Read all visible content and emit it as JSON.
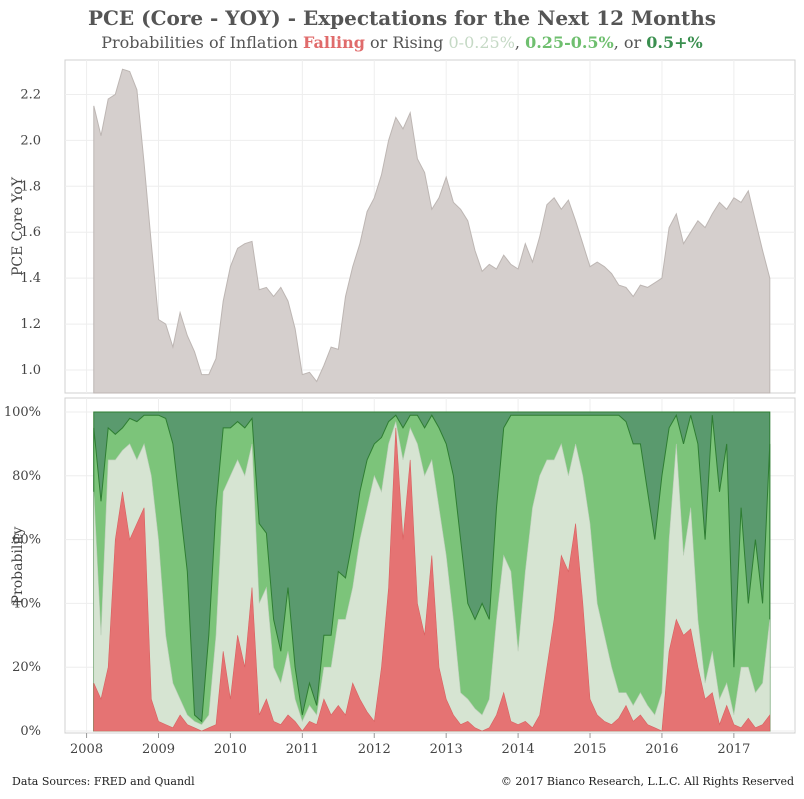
{
  "title": "PCE (Core - YOY) - Expectations for the Next 12 Months",
  "subtitle": {
    "prefix": "Probabilities of Inflation ",
    "falling": "Falling",
    "middle": " or Rising ",
    "band1": "0-0.25%",
    "sep1": ", ",
    "band2": "0.25-0.5%",
    "sep2": ", or ",
    "band3": "0.5+%"
  },
  "footer": {
    "left": "Data Sources: FRED and Quandl",
    "right": "© 2017 Bianco Research, L.L.C. All Rights Reserved"
  },
  "colors": {
    "pce_fill": "#d5cfcd",
    "pce_line": "#bdb6b3",
    "falling": "#e57373",
    "band1": "#d6e4d2",
    "band2": "#7cc47a",
    "band3": "#5a9a6e",
    "band3_line": "#2e7d32"
  },
  "chart_data": [
    {
      "type": "area",
      "ylabel": "PCE Core YoY",
      "ylim": [
        0.9,
        2.35
      ],
      "yticks": [
        "2.2",
        "2.0",
        "1.8",
        "1.6",
        "1.4",
        "1.2",
        "1.0"
      ],
      "grid": true,
      "x": [
        2008.1,
        2008.2,
        2008.3,
        2008.4,
        2008.5,
        2008.6,
        2008.7,
        2008.8,
        2008.9,
        2009.0,
        2009.1,
        2009.2,
        2009.3,
        2009.4,
        2009.5,
        2009.6,
        2009.7,
        2009.8,
        2009.9,
        2010.0,
        2010.1,
        2010.2,
        2010.3,
        2010.4,
        2010.5,
        2010.6,
        2010.7,
        2010.8,
        2010.9,
        2011.0,
        2011.1,
        2011.2,
        2011.3,
        2011.4,
        2011.5,
        2011.6,
        2011.7,
        2011.8,
        2011.9,
        2012.0,
        2012.1,
        2012.2,
        2012.3,
        2012.4,
        2012.5,
        2012.6,
        2012.7,
        2012.8,
        2012.9,
        2013.0,
        2013.1,
        2013.2,
        2013.3,
        2013.4,
        2013.5,
        2013.6,
        2013.7,
        2013.8,
        2013.9,
        2014.0,
        2014.1,
        2014.2,
        2014.3,
        2014.4,
        2014.5,
        2014.6,
        2014.7,
        2014.8,
        2014.9,
        2015.0,
        2015.1,
        2015.2,
        2015.3,
        2015.4,
        2015.5,
        2015.6,
        2015.7,
        2015.8,
        2015.9,
        2016.0,
        2016.1,
        2016.2,
        2016.3,
        2016.4,
        2016.5,
        2016.6,
        2016.7,
        2016.8,
        2016.9,
        2017.0,
        2017.1,
        2017.2,
        2017.3,
        2017.4,
        2017.5
      ],
      "values": [
        2.15,
        2.02,
        2.18,
        2.2,
        2.31,
        2.3,
        2.22,
        1.9,
        1.55,
        1.22,
        1.2,
        1.1,
        1.25,
        1.15,
        1.08,
        0.98,
        0.98,
        1.05,
        1.3,
        1.45,
        1.53,
        1.55,
        1.56,
        1.35,
        1.36,
        1.32,
        1.36,
        1.3,
        1.18,
        0.98,
        0.99,
        0.95,
        1.02,
        1.1,
        1.09,
        1.32,
        1.45,
        1.55,
        1.69,
        1.75,
        1.85,
        2.0,
        2.1,
        2.05,
        2.12,
        1.92,
        1.86,
        1.7,
        1.75,
        1.84,
        1.73,
        1.7,
        1.65,
        1.52,
        1.43,
        1.46,
        1.44,
        1.5,
        1.46,
        1.44,
        1.55,
        1.47,
        1.58,
        1.72,
        1.75,
        1.7,
        1.74,
        1.65,
        1.55,
        1.45,
        1.47,
        1.45,
        1.42,
        1.37,
        1.36,
        1.32,
        1.37,
        1.36,
        1.38,
        1.4,
        1.62,
        1.68,
        1.55,
        1.6,
        1.65,
        1.62,
        1.68,
        1.73,
        1.7,
        1.75,
        1.73,
        1.78,
        1.65,
        1.52,
        1.4
      ]
    },
    {
      "type": "area",
      "ylabel": "Probability",
      "ylim": [
        0,
        100
      ],
      "yticks": [
        "100%",
        "80%",
        "60%",
        "40%",
        "20%",
        "0%"
      ],
      "xlabels": [
        "2008",
        "2009",
        "2010",
        "2011",
        "2012",
        "2013",
        "2014",
        "2015",
        "2016",
        "2017"
      ],
      "x": [
        2008.1,
        2008.2,
        2008.3,
        2008.4,
        2008.5,
        2008.6,
        2008.7,
        2008.8,
        2008.9,
        2009.0,
        2009.1,
        2009.2,
        2009.3,
        2009.4,
        2009.5,
        2009.6,
        2009.7,
        2009.8,
        2009.9,
        2010.0,
        2010.1,
        2010.2,
        2010.3,
        2010.4,
        2010.5,
        2010.6,
        2010.7,
        2010.8,
        2010.9,
        2011.0,
        2011.1,
        2011.2,
        2011.3,
        2011.4,
        2011.5,
        2011.6,
        2011.7,
        2011.8,
        2011.9,
        2012.0,
        2012.1,
        2012.2,
        2012.3,
        2012.4,
        2012.5,
        2012.6,
        2012.7,
        2012.8,
        2012.9,
        2013.0,
        2013.1,
        2013.2,
        2013.3,
        2013.4,
        2013.5,
        2013.6,
        2013.7,
        2013.8,
        2013.9,
        2014.0,
        2014.1,
        2014.2,
        2014.3,
        2014.4,
        2014.5,
        2014.6,
        2014.7,
        2014.8,
        2014.9,
        2015.0,
        2015.1,
        2015.2,
        2015.3,
        2015.4,
        2015.5,
        2015.6,
        2015.7,
        2015.8,
        2015.9,
        2016.0,
        2016.1,
        2016.2,
        2016.3,
        2016.4,
        2016.5,
        2016.6,
        2016.7,
        2016.8,
        2016.9,
        2017.0,
        2017.1,
        2017.2,
        2017.3,
        2017.4,
        2017.5
      ],
      "series": [
        {
          "name": "Falling",
          "values": [
            15,
            10,
            20,
            60,
            75,
            60,
            65,
            70,
            10,
            3,
            2,
            1,
            5,
            2,
            1,
            0,
            1,
            2,
            25,
            10,
            30,
            20,
            45,
            5,
            10,
            3,
            2,
            5,
            3,
            0,
            3,
            2,
            10,
            5,
            8,
            5,
            15,
            10,
            6,
            3,
            20,
            45,
            95,
            60,
            85,
            40,
            30,
            55,
            20,
            10,
            5,
            2,
            3,
            1,
            0,
            1,
            5,
            12,
            3,
            2,
            3,
            1,
            5,
            20,
            35,
            55,
            50,
            65,
            40,
            10,
            5,
            3,
            2,
            4,
            8,
            3,
            5,
            2,
            1,
            0,
            25,
            35,
            30,
            32,
            20,
            10,
            12,
            2,
            8,
            2,
            1,
            4,
            1,
            2,
            5
          ]
        },
        {
          "name": "0-0.25%",
          "values": [
            75,
            30,
            85,
            85,
            88,
            90,
            85,
            90,
            80,
            60,
            30,
            15,
            10,
            5,
            3,
            2,
            5,
            30,
            75,
            80,
            85,
            80,
            90,
            40,
            45,
            20,
            15,
            25,
            10,
            3,
            8,
            5,
            20,
            20,
            35,
            35,
            45,
            60,
            70,
            80,
            75,
            90,
            97,
            85,
            95,
            90,
            80,
            85,
            70,
            55,
            35,
            12,
            10,
            7,
            5,
            10,
            35,
            55,
            50,
            25,
            50,
            70,
            80,
            85,
            85,
            90,
            80,
            90,
            80,
            65,
            40,
            30,
            20,
            12,
            12,
            8,
            12,
            8,
            5,
            12,
            60,
            90,
            55,
            70,
            35,
            15,
            25,
            10,
            15,
            5,
            20,
            20,
            12,
            15,
            35
          ]
        },
        {
          "name": "0.25-0.5%",
          "values": [
            95,
            72,
            95,
            93,
            95,
            98,
            97,
            99,
            99,
            99,
            98,
            90,
            70,
            50,
            5,
            3,
            30,
            70,
            95,
            95,
            97,
            95,
            98,
            65,
            62,
            35,
            25,
            45,
            20,
            5,
            15,
            8,
            30,
            30,
            50,
            48,
            60,
            75,
            85,
            90,
            92,
            97,
            99,
            95,
            99,
            99,
            95,
            99,
            95,
            90,
            80,
            60,
            40,
            35,
            40,
            35,
            70,
            95,
            99,
            99,
            99,
            99,
            99,
            99,
            99,
            99,
            99,
            99,
            99,
            99,
            99,
            99,
            99,
            99,
            97,
            90,
            90,
            75,
            60,
            80,
            95,
            99,
            90,
            99,
            90,
            60,
            99,
            75,
            90,
            20,
            70,
            40,
            60,
            40,
            90
          ]
        }
      ]
    }
  ]
}
